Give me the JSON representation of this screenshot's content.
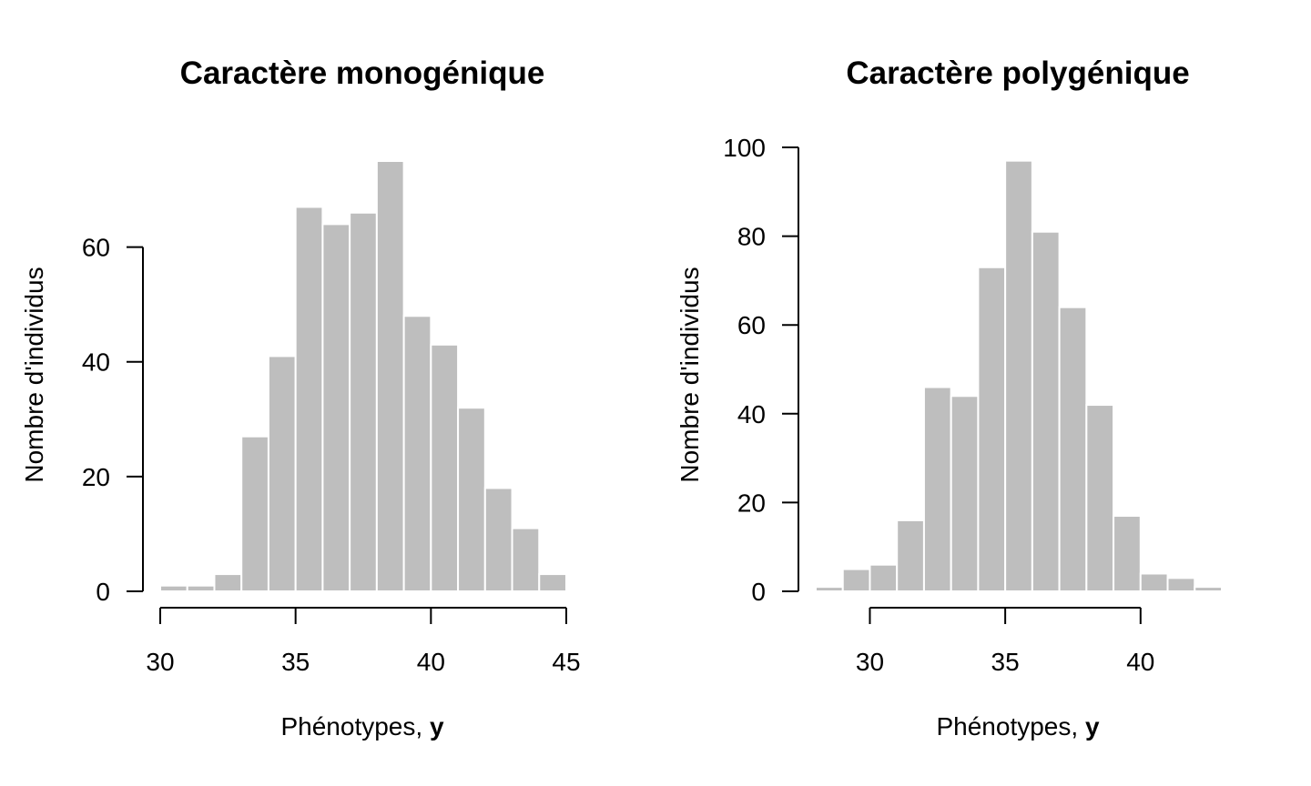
{
  "chart_data": [
    {
      "type": "bar",
      "title": "Caractère monogénique",
      "xlabel": "Phénotypes, ",
      "xlabel_bold": "y",
      "ylabel": "Nombre d'individus",
      "bin_width": 1,
      "x": [
        30,
        31,
        32,
        33,
        34,
        35,
        36,
        37,
        38,
        39,
        40,
        41,
        42,
        43,
        44
      ],
      "values": [
        1,
        1,
        3,
        27,
        41,
        67,
        64,
        66,
        75,
        48,
        43,
        32,
        18,
        11,
        3
      ],
      "xlim": [
        30,
        45
      ],
      "xticks": [
        30,
        35,
        40,
        45
      ],
      "ylim": [
        0,
        75
      ],
      "yticks": [
        0,
        20,
        40,
        60
      ],
      "grid": false,
      "bar_color": "#bebebe"
    },
    {
      "type": "bar",
      "title": "Caractère polygénique",
      "xlabel": "Phénotypes, ",
      "xlabel_bold": "y",
      "ylabel": "Nombre d'individus",
      "bin_width": 1,
      "x": [
        28,
        29,
        30,
        31,
        32,
        33,
        34,
        35,
        36,
        37,
        38,
        39,
        40,
        41,
        42
      ],
      "values": [
        1,
        5,
        6,
        16,
        46,
        44,
        73,
        97,
        81,
        64,
        42,
        17,
        4,
        3,
        1
      ],
      "xlim": [
        28,
        43
      ],
      "xticks": [
        30,
        35,
        40
      ],
      "ylim": [
        0,
        100
      ],
      "yticks": [
        0,
        20,
        40,
        60,
        80,
        100
      ],
      "grid": false,
      "bar_color": "#bebebe"
    }
  ]
}
